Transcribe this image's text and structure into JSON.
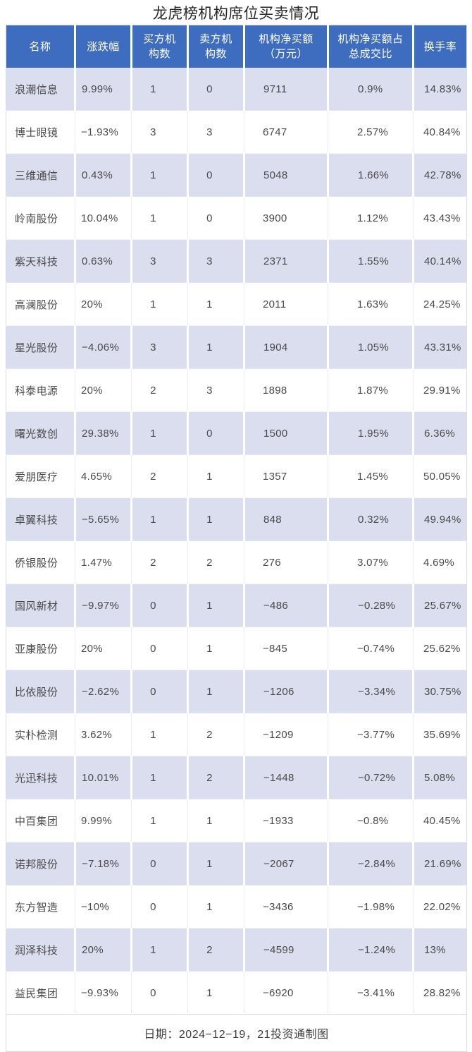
{
  "title": "龙虎榜机构席位买卖情况",
  "colors": {
    "header_bg": "#3E6DBF",
    "band_bg": "#DADEEF",
    "row_alt_bg": "#FFFFFF",
    "outer_border": "#D8DBE7",
    "header_text": "#FFFFFF",
    "cell_text": "#4A4A4A",
    "title_text": "#262626"
  },
  "table": {
    "columns": [
      {
        "key": "name",
        "label": "名称"
      },
      {
        "key": "change-pct",
        "label": "涨跌幅"
      },
      {
        "key": "buy-inst-count",
        "label": "买方机\n构数"
      },
      {
        "key": "sell-inst-count",
        "label": "卖方机\n构数"
      },
      {
        "key": "net-buy-amount",
        "label": "机构净买额\n（万元）"
      },
      {
        "key": "net-buy-ratio",
        "label": "机构净买额占\n总成交比"
      },
      {
        "key": "turnover-rate",
        "label": "换手率"
      }
    ],
    "rows": [
      [
        "浪潮信息",
        "9.99%",
        "1",
        "0",
        "9711",
        "0.9%",
        "14.83%"
      ],
      [
        "博士眼镜",
        "−1.93%",
        "3",
        "3",
        "6747",
        "2.57%",
        "40.84%"
      ],
      [
        "三维通信",
        "0.43%",
        "1",
        "0",
        "5048",
        "1.66%",
        "42.78%"
      ],
      [
        "岭南股份",
        "10.04%",
        "1",
        "0",
        "3900",
        "1.12%",
        "43.43%"
      ],
      [
        "紫天科技",
        "0.63%",
        "3",
        "3",
        "2371",
        "1.55%",
        "40.14%"
      ],
      [
        "高澜股份",
        "20%",
        "1",
        "1",
        "2011",
        "1.63%",
        "24.25%"
      ],
      [
        "星光股份",
        "−4.06%",
        "3",
        "1",
        "1904",
        "1.05%",
        "43.31%"
      ],
      [
        "科泰电源",
        "20%",
        "2",
        "3",
        "1898",
        "1.87%",
        "29.91%"
      ],
      [
        "曙光数创",
        "29.38%",
        "1",
        "0",
        "1500",
        "1.95%",
        "6.36%"
      ],
      [
        "爱朋医疗",
        "4.65%",
        "2",
        "1",
        "1357",
        "1.45%",
        "50.05%"
      ],
      [
        "卓翼科技",
        "−5.65%",
        "1",
        "1",
        "848",
        "0.32%",
        "49.94%"
      ],
      [
        "侨银股份",
        "1.47%",
        "2",
        "2",
        "276",
        "3.07%",
        "4.69%"
      ],
      [
        "国风新材",
        "−9.97%",
        "0",
        "1",
        "−486",
        "−0.28%",
        "25.67%"
      ],
      [
        "亚康股份",
        "20%",
        "0",
        "1",
        "−845",
        "−0.74%",
        "25.62%"
      ],
      [
        "比依股份",
        "−2.62%",
        "0",
        "1",
        "−1206",
        "−3.34%",
        "30.75%"
      ],
      [
        "实朴检测",
        "3.62%",
        "1",
        "2",
        "−1209",
        "−3.77%",
        "35.69%"
      ],
      [
        "光迅科技",
        "10.01%",
        "1",
        "2",
        "−1448",
        "−0.72%",
        "5.08%"
      ],
      [
        "中百集团",
        "9.99%",
        "1",
        "1",
        "−1933",
        "−0.8%",
        "40.45%"
      ],
      [
        "诺邦股份",
        "−7.18%",
        "0",
        "1",
        "−2067",
        "−2.84%",
        "21.69%"
      ],
      [
        "东方智造",
        "−10%",
        "0",
        "1",
        "−3436",
        "−1.98%",
        "22.02%"
      ],
      [
        "润泽科技",
        "20%",
        "1",
        "2",
        "−4599",
        "−1.24%",
        "13%"
      ],
      [
        "益民集团",
        "−9.93%",
        "0",
        "1",
        "−6920",
        "−3.41%",
        "28.82%"
      ]
    ]
  },
  "chart_data": {
    "type": "table",
    "title": "龙虎榜机构席位买卖情况",
    "columns": [
      "名称",
      "涨跌幅",
      "买方机构数",
      "卖方机构数",
      "机构净买额（万元）",
      "机构净买额占总成交比",
      "换手率"
    ],
    "rows": [
      [
        "浪潮信息",
        "9.99%",
        1,
        0,
        9711,
        "0.9%",
        "14.83%"
      ],
      [
        "博士眼镜",
        "-1.93%",
        3,
        3,
        6747,
        "2.57%",
        "40.84%"
      ],
      [
        "三维通信",
        "0.43%",
        1,
        0,
        5048,
        "1.66%",
        "42.78%"
      ],
      [
        "岭南股份",
        "10.04%",
        1,
        0,
        3900,
        "1.12%",
        "43.43%"
      ],
      [
        "紫天科技",
        "0.63%",
        3,
        3,
        2371,
        "1.55%",
        "40.14%"
      ],
      [
        "高澜股份",
        "20%",
        1,
        1,
        2011,
        "1.63%",
        "24.25%"
      ],
      [
        "星光股份",
        "-4.06%",
        3,
        1,
        1904,
        "1.05%",
        "43.31%"
      ],
      [
        "科泰电源",
        "20%",
        2,
        3,
        1898,
        "1.87%",
        "29.91%"
      ],
      [
        "曙光数创",
        "29.38%",
        1,
        0,
        1500,
        "1.95%",
        "6.36%"
      ],
      [
        "爱朋医疗",
        "4.65%",
        2,
        1,
        1357,
        "1.45%",
        "50.05%"
      ],
      [
        "卓翼科技",
        "-5.65%",
        1,
        1,
        848,
        "0.32%",
        "49.94%"
      ],
      [
        "侨银股份",
        "1.47%",
        2,
        2,
        276,
        "3.07%",
        "4.69%"
      ],
      [
        "国风新材",
        "-9.97%",
        0,
        1,
        -486,
        "-0.28%",
        "25.67%"
      ],
      [
        "亚康股份",
        "20%",
        0,
        1,
        -845,
        "-0.74%",
        "25.62%"
      ],
      [
        "比依股份",
        "-2.62%",
        0,
        1,
        -1206,
        "-3.34%",
        "30.75%"
      ],
      [
        "实朴检测",
        "3.62%",
        1,
        2,
        -1209,
        "-3.77%",
        "35.69%"
      ],
      [
        "光迅科技",
        "10.01%",
        1,
        2,
        -1448,
        "-0.72%",
        "5.08%"
      ],
      [
        "中百集团",
        "9.99%",
        1,
        1,
        -1933,
        "-0.8%",
        "40.45%"
      ],
      [
        "诺邦股份",
        "-7.18%",
        0,
        1,
        -2067,
        "-2.84%",
        "21.69%"
      ],
      [
        "东方智造",
        "-10%",
        0,
        1,
        -3436,
        "-1.98%",
        "22.02%"
      ],
      [
        "润泽科技",
        "20%",
        1,
        2,
        -4599,
        "-1.24%",
        "13%"
      ],
      [
        "益民集团",
        "-9.93%",
        0,
        1,
        -6920,
        "-3.41%",
        "28.82%"
      ]
    ]
  },
  "footer": {
    "note": "日期：2024−12−19，21投资通制图"
  }
}
